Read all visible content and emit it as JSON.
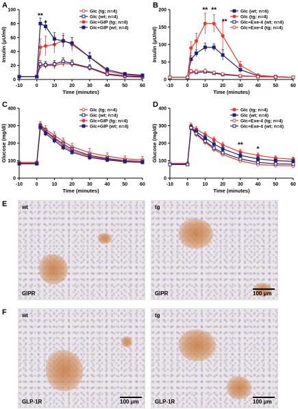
{
  "panels": {
    "A": {
      "letter": "A",
      "ylabel": "Insulin (μU/ml)",
      "xlabel": "Time (minutes)"
    },
    "B": {
      "letter": "B",
      "ylabel": "Insulin (μU/ml)",
      "xlabel": "Time (minutes)"
    },
    "C": {
      "letter": "C",
      "ylabel": "Glucose (mg/dl)",
      "xlabel": "Time (minutes)"
    },
    "D": {
      "letter": "D",
      "ylabel": "Glucose (mg/dl)",
      "xlabel": "Time (minutes)"
    },
    "E": {
      "letter": "E"
    },
    "F": {
      "letter": "F"
    }
  },
  "chart_data": [
    {
      "id": "A",
      "type": "line",
      "xlabel": "Time (minutes)",
      "ylabel": "Insulin (μU/ml)",
      "xlim": [
        -10,
        60
      ],
      "ylim": [
        0,
        100
      ],
      "xticks": [
        -10,
        0,
        10,
        20,
        30,
        40,
        50,
        60
      ],
      "yticks": [
        0,
        20,
        40,
        60,
        80,
        100
      ],
      "legend_position": "top-right",
      "annotations": [
        {
          "text": "**",
          "x": 2,
          "y": 88
        },
        {
          "text": "*",
          "x": 5,
          "y": 78
        }
      ],
      "series": [
        {
          "name": "Glc (tg; n=4)",
          "color": "#e8392f",
          "marker": "circle-open",
          "x": [
            -10,
            0,
            2,
            5,
            10,
            15,
            20,
            30,
            40,
            50,
            60
          ],
          "y": [
            4,
            4,
            19,
            20,
            20,
            23,
            22,
            16,
            7,
            4,
            3
          ],
          "err": [
            1,
            1,
            4,
            4,
            5,
            5,
            5,
            4,
            2,
            1,
            1
          ]
        },
        {
          "name": "Glc (wt; n=4)",
          "color": "#1f1f7a",
          "marker": "square-open",
          "x": [
            -10,
            0,
            2,
            5,
            10,
            15,
            20,
            30,
            40,
            50,
            60
          ],
          "y": [
            4,
            4,
            22,
            21,
            22,
            26,
            23,
            17,
            8,
            5,
            4
          ],
          "err": [
            1,
            1,
            5,
            5,
            5,
            5,
            5,
            4,
            2,
            1,
            1
          ]
        },
        {
          "name": "Glc+GIP (tg; n=4)",
          "color": "#e8392f",
          "marker": "circle",
          "x": [
            -10,
            0,
            2,
            5,
            10,
            15,
            20,
            30,
            40,
            50,
            60
          ],
          "y": [
            4,
            4,
            46,
            48,
            50,
            56,
            50,
            32,
            12,
            7,
            5
          ],
          "err": [
            1,
            1,
            12,
            14,
            12,
            10,
            10,
            7,
            4,
            2,
            1
          ]
        },
        {
          "name": "Glc+GIP (wt; n=4)",
          "color": "#1f1f7a",
          "marker": "square",
          "x": [
            -10,
            0,
            2,
            5,
            10,
            15,
            20,
            30,
            40,
            50,
            60
          ],
          "y": [
            4,
            4,
            80,
            76,
            58,
            55,
            52,
            32,
            14,
            8,
            6
          ],
          "err": [
            1,
            1,
            8,
            6,
            9,
            8,
            8,
            6,
            3,
            2,
            1
          ]
        }
      ]
    },
    {
      "id": "B",
      "type": "line",
      "xlabel": "Time (minutes)",
      "ylabel": "Insulin (μU/ml)",
      "xlim": [
        -10,
        60
      ],
      "ylim": [
        0,
        200
      ],
      "xticks": [
        -10,
        0,
        10,
        20,
        30,
        40,
        50,
        60
      ],
      "yticks": [
        0,
        50,
        100,
        150,
        200
      ],
      "legend_position": "top-right",
      "annotations": [
        {
          "text": "**",
          "x": 10,
          "y": 193
        },
        {
          "text": "**",
          "x": 15,
          "y": 193
        },
        {
          "text": "**",
          "x": 21,
          "y": 160
        }
      ],
      "series": [
        {
          "name": "Glc (wt; n=4)",
          "color": "#1f1f7a",
          "marker": "square",
          "x": [
            -10,
            0,
            2,
            5,
            10,
            15,
            20,
            30,
            40,
            50,
            60
          ],
          "y": [
            6,
            6,
            58,
            75,
            92,
            92,
            70,
            28,
            10,
            8,
            6
          ],
          "err": [
            2,
            2,
            10,
            10,
            12,
            10,
            15,
            8,
            3,
            2,
            2
          ]
        },
        {
          "name": "Glc (tg; n=4)",
          "color": "#e8392f",
          "marker": "circle",
          "x": [
            -10,
            0,
            2,
            5,
            10,
            15,
            20,
            30,
            40,
            50,
            60
          ],
          "y": [
            6,
            6,
            90,
            110,
            160,
            160,
            125,
            40,
            12,
            8,
            6
          ],
          "err": [
            2,
            2,
            18,
            22,
            30,
            25,
            40,
            12,
            4,
            2,
            2
          ]
        },
        {
          "name": "Glc+Exe-4 (wt; n=4)",
          "color": "#1f1f7a",
          "marker": "square-open",
          "x": [
            -10,
            0,
            2,
            5,
            10,
            15,
            20,
            30,
            40,
            50,
            60
          ],
          "y": [
            6,
            6,
            22,
            20,
            22,
            18,
            14,
            10,
            8,
            7,
            6
          ],
          "err": [
            2,
            2,
            4,
            4,
            4,
            4,
            3,
            3,
            2,
            2,
            2
          ]
        },
        {
          "name": "Glc+Exe-4 (tg; n=4)",
          "color": "#e8392f",
          "marker": "circle-open",
          "x": [
            -10,
            0,
            2,
            5,
            10,
            15,
            20,
            30,
            40,
            50,
            60
          ],
          "y": [
            6,
            6,
            24,
            23,
            25,
            20,
            16,
            11,
            8,
            7,
            6
          ],
          "err": [
            2,
            2,
            5,
            5,
            5,
            4,
            3,
            3,
            2,
            2,
            2
          ]
        }
      ]
    },
    {
      "id": "C",
      "type": "line",
      "xlabel": "Time (minutes)",
      "ylabel": "Glucose (mg/dl)",
      "xlim": [
        -10,
        60
      ],
      "ylim": [
        0,
        400
      ],
      "xticks": [
        -10,
        0,
        10,
        20,
        30,
        40,
        50,
        60
      ],
      "yticks": [
        0,
        100,
        200,
        300,
        400
      ],
      "legend_position": "top-right",
      "annotations": [],
      "series": [
        {
          "name": "Glc (tg; n=4)",
          "color": "#e8392f",
          "marker": "circle-open",
          "x": [
            -10,
            0,
            2,
            5,
            10,
            15,
            20,
            30,
            40,
            50,
            60
          ],
          "y": [
            90,
            90,
            305,
            280,
            245,
            210,
            180,
            145,
            125,
            110,
            105
          ],
          "err": [
            8,
            8,
            20,
            20,
            20,
            20,
            20,
            25,
            20,
            18,
            18
          ]
        },
        {
          "name": "Glc (wt; n=4)",
          "color": "#1f1f7a",
          "marker": "square-open",
          "x": [
            -10,
            0,
            2,
            5,
            10,
            15,
            20,
            30,
            40,
            50,
            60
          ],
          "y": [
            85,
            85,
            300,
            270,
            230,
            195,
            165,
            130,
            112,
            100,
            96
          ],
          "err": [
            8,
            8,
            15,
            15,
            15,
            15,
            15,
            15,
            12,
            10,
            10
          ]
        },
        {
          "name": "Glc+GIP (tg; n=4)",
          "color": "#e8392f",
          "marker": "circle",
          "x": [
            -10,
            0,
            2,
            5,
            10,
            15,
            20,
            30,
            40,
            50,
            60
          ],
          "y": [
            88,
            88,
            298,
            265,
            225,
            185,
            155,
            125,
            108,
            98,
            94
          ],
          "err": [
            8,
            8,
            15,
            15,
            15,
            15,
            15,
            15,
            12,
            10,
            10
          ]
        },
        {
          "name": "Glc+GIP (wt; n=4)",
          "color": "#1f1f7a",
          "marker": "square",
          "x": [
            -10,
            0,
            2,
            5,
            10,
            15,
            20,
            30,
            40,
            50,
            60
          ],
          "y": [
            82,
            82,
            290,
            255,
            215,
            175,
            148,
            118,
            104,
            94,
            90
          ],
          "err": [
            8,
            8,
            15,
            15,
            15,
            15,
            15,
            15,
            12,
            10,
            10
          ]
        }
      ]
    },
    {
      "id": "D",
      "type": "line",
      "xlabel": "Time (minutes)",
      "ylabel": "Glucose (mg/dl)",
      "xlim": [
        -10,
        60
      ],
      "ylim": [
        0,
        400
      ],
      "xticks": [
        -10,
        0,
        10,
        20,
        30,
        40,
        50,
        60
      ],
      "yticks": [
        0,
        100,
        200,
        300,
        400
      ],
      "legend_position": "top-right",
      "annotations": [
        {
          "text": "**",
          "x": 30,
          "y": 178
        },
        {
          "text": "*",
          "x": 40,
          "y": 155
        }
      ],
      "series": [
        {
          "name": "Glc (tg; n=4)",
          "color": "#e8392f",
          "marker": "circle",
          "x": [
            -10,
            0,
            2,
            5,
            10,
            15,
            20,
            30,
            40,
            50,
            60
          ],
          "y": [
            82,
            82,
            300,
            280,
            250,
            220,
            190,
            150,
            130,
            115,
            108
          ],
          "err": [
            8,
            8,
            15,
            15,
            15,
            15,
            15,
            15,
            15,
            12,
            12
          ]
        },
        {
          "name": "Glc (wt; n=4)",
          "color": "#1f1f7a",
          "marker": "square",
          "x": [
            -10,
            0,
            2,
            5,
            10,
            15,
            20,
            30,
            40,
            50,
            60
          ],
          "y": [
            80,
            80,
            290,
            265,
            230,
            195,
            168,
            130,
            110,
            100,
            96
          ],
          "err": [
            8,
            8,
            15,
            15,
            15,
            15,
            15,
            15,
            12,
            10,
            10
          ]
        },
        {
          "name": "Glc+Exe-4 (tg; n=4)",
          "color": "#e8392f",
          "marker": "circle-open",
          "x": [
            -10,
            0,
            2,
            5,
            10,
            15,
            20,
            30,
            40,
            50,
            60
          ],
          "y": [
            85,
            85,
            285,
            250,
            205,
            165,
            135,
            98,
            78,
            72,
            70
          ],
          "err": [
            8,
            8,
            15,
            15,
            15,
            15,
            12,
            10,
            8,
            8,
            8
          ]
        },
        {
          "name": "Glc+Exe-4 (wt; n=4)",
          "color": "#1f1f7a",
          "marker": "square-open",
          "x": [
            -10,
            0,
            2,
            5,
            10,
            15,
            20,
            30,
            40,
            50,
            60
          ],
          "y": [
            78,
            78,
            288,
            255,
            212,
            172,
            145,
            110,
            90,
            82,
            80
          ],
          "err": [
            8,
            8,
            15,
            15,
            15,
            15,
            12,
            10,
            10,
            8,
            8
          ]
        }
      ]
    }
  ],
  "micrographs": [
    {
      "id": "E-left",
      "genotype": "wt",
      "stain": "GIPR",
      "scale": ""
    },
    {
      "id": "E-right",
      "genotype": "tg",
      "stain": "GIPR",
      "scale": "100 μm"
    },
    {
      "id": "F-left",
      "genotype": "wt",
      "stain": "GLP-1R",
      "scale": "100 μm"
    },
    {
      "id": "F-right",
      "genotype": "tg",
      "stain": "GLP-1R",
      "scale": "100 μm"
    }
  ]
}
